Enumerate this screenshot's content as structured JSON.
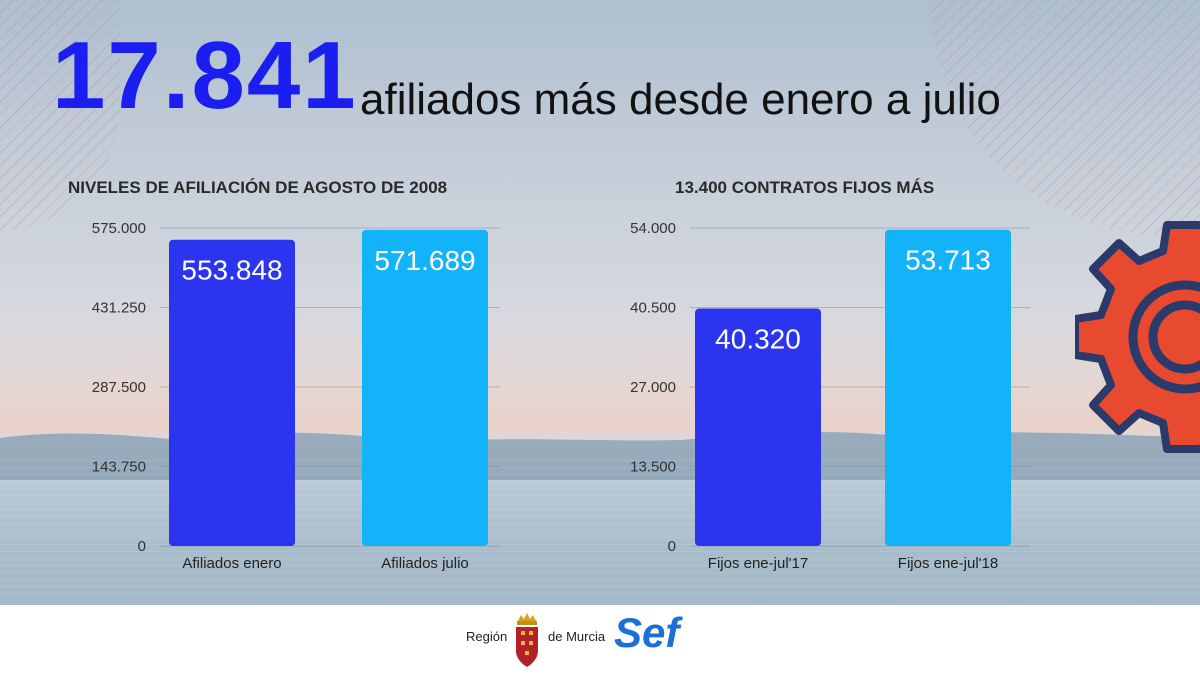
{
  "headline": {
    "number": "17.841",
    "text": "afiliados más desde enero a julio"
  },
  "colors": {
    "primary": "#2b35f0",
    "secondary": "#12b3f8",
    "headline_number": "#1a1ef0",
    "gear": "#e84a2f",
    "gear_outline": "#2a3a6a"
  },
  "chart_data": [
    {
      "type": "bar",
      "title": "NIVELES DE AFILIACIÓN DE AGOSTO DE 2008",
      "categories": [
        "Afiliados enero",
        "Afiliados julio"
      ],
      "values": [
        553848,
        571689
      ],
      "value_labels": [
        "553.848",
        "571.689"
      ],
      "bar_colors": [
        "#2b35f0",
        "#12b3f8"
      ],
      "yticks": [
        "0",
        "143.750",
        "287.500",
        "431.250",
        "575.000"
      ],
      "ylim": [
        0,
        575000
      ],
      "grid": true
    },
    {
      "type": "bar",
      "title": "13.400 CONTRATOS FIJOS MÁS",
      "categories": [
        "Fijos ene-jul'17",
        "Fijos ene-jul'18"
      ],
      "values": [
        40320,
        53713
      ],
      "value_labels": [
        "40.320",
        "53.713"
      ],
      "bar_colors": [
        "#2b35f0",
        "#12b3f8"
      ],
      "yticks": [
        "0",
        "13.500",
        "27.000",
        "40.500",
        "54.000"
      ],
      "ylim": [
        0,
        54000
      ],
      "grid": true
    }
  ],
  "footer": {
    "region_left": "Región",
    "region_right": "de Murcia",
    "logo_text": "Sef"
  }
}
